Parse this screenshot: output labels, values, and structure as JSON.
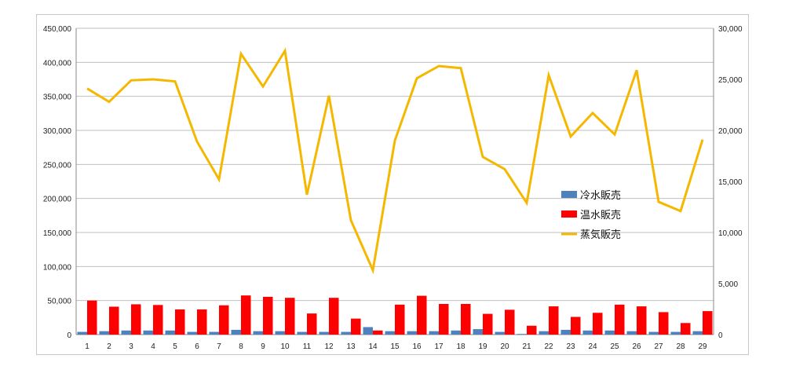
{
  "chart_data": {
    "type": "bar",
    "title": "",
    "xlabel": "",
    "ylabel": "",
    "ylim": [
      0,
      450000
    ],
    "y2lim": [
      0,
      30000
    ],
    "yticks": [
      "0",
      "50,000",
      "100,000",
      "150,000",
      "200,000",
      "250,000",
      "300,000",
      "350,000",
      "400,000",
      "450,000"
    ],
    "y2ticks": [
      "0",
      "5,000",
      "10,000",
      "15,000",
      "20,000",
      "25,000",
      "30,000"
    ],
    "grid": true,
    "legend_position": "right",
    "categories": [
      "1",
      "2",
      "3",
      "4",
      "5",
      "6",
      "7",
      "8",
      "9",
      "10",
      "11",
      "12",
      "13",
      "14",
      "15",
      "16",
      "17",
      "18",
      "19",
      "20",
      "21",
      "22",
      "23",
      "24",
      "25",
      "26",
      "27",
      "28",
      "29"
    ],
    "series": [
      {
        "name": "冷水販売",
        "kind": "bar",
        "axis": "left",
        "color": "#4f81bd",
        "values": [
          4000,
          5000,
          6000,
          6000,
          6000,
          4000,
          4000,
          7000,
          5000,
          5000,
          4000,
          4000,
          4000,
          11000,
          5000,
          5000,
          5000,
          6000,
          8000,
          4000,
          1000,
          5000,
          7000,
          6000,
          6000,
          5000,
          4000,
          4000,
          5000
        ]
      },
      {
        "name": "温水販売",
        "kind": "bar",
        "axis": "left",
        "color": "#ff0000",
        "values": [
          50000,
          41000,
          44500,
          43500,
          37000,
          37000,
          43000,
          57500,
          55500,
          54000,
          31000,
          54000,
          23500,
          6000,
          44000,
          57000,
          45000,
          45000,
          30500,
          36500,
          13000,
          41500,
          26000,
          32000,
          44000,
          41500,
          33000,
          17000,
          34500
        ]
      },
      {
        "name": "蒸気販売",
        "kind": "line",
        "axis": "right",
        "color": "#f5b800",
        "values": [
          24100,
          22800,
          24900,
          25000,
          24800,
          18900,
          15200,
          27500,
          24300,
          27800,
          13700,
          23400,
          11200,
          6300,
          19000,
          25100,
          26300,
          26100,
          17400,
          16200,
          12900,
          25400,
          19400,
          21700,
          19600,
          25900,
          13000,
          12100,
          19100
        ]
      }
    ]
  }
}
